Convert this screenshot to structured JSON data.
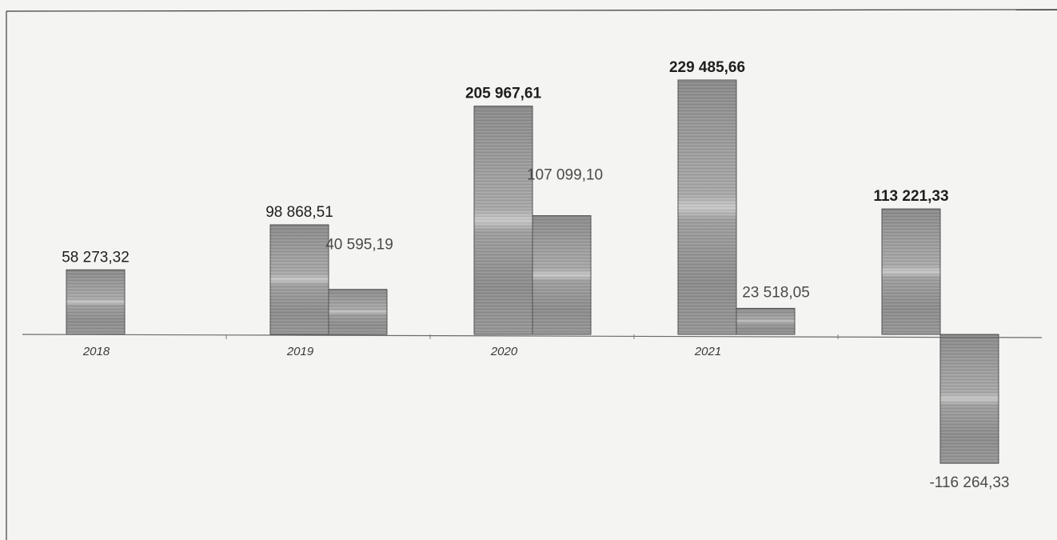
{
  "chart_data": {
    "type": "bar",
    "title": "",
    "xlabel": "",
    "ylabel": "",
    "categories": [
      "2018",
      "2019",
      "2020",
      "2021",
      ""
    ],
    "series": [
      {
        "values": [
          58273.32,
          98868.51,
          205967.61,
          229485.66,
          113221.33
        ],
        "labels": [
          "58 273,32",
          "98 868,51",
          "205 967,61",
          "229 485,66",
          "113 221,33"
        ],
        "color": "#8e8e8e"
      },
      {
        "values": [
          null,
          40595.19,
          107099.1,
          23518.05,
          -116264.33
        ],
        "labels": [
          "",
          "40 595,19",
          "107 099,10",
          "23 518,05",
          "-116 264,33"
        ],
        "color": "#9a9a9a"
      }
    ],
    "ylim": [
      -170000,
      290000
    ],
    "grid": false,
    "legend": "none"
  },
  "colors": {
    "background": "#f4f4f2",
    "bar_primary": "#8e8e8e",
    "bar_secondary": "#9a9a9a",
    "axis": "#6a6a6a",
    "frame": "#3a3a3a"
  }
}
